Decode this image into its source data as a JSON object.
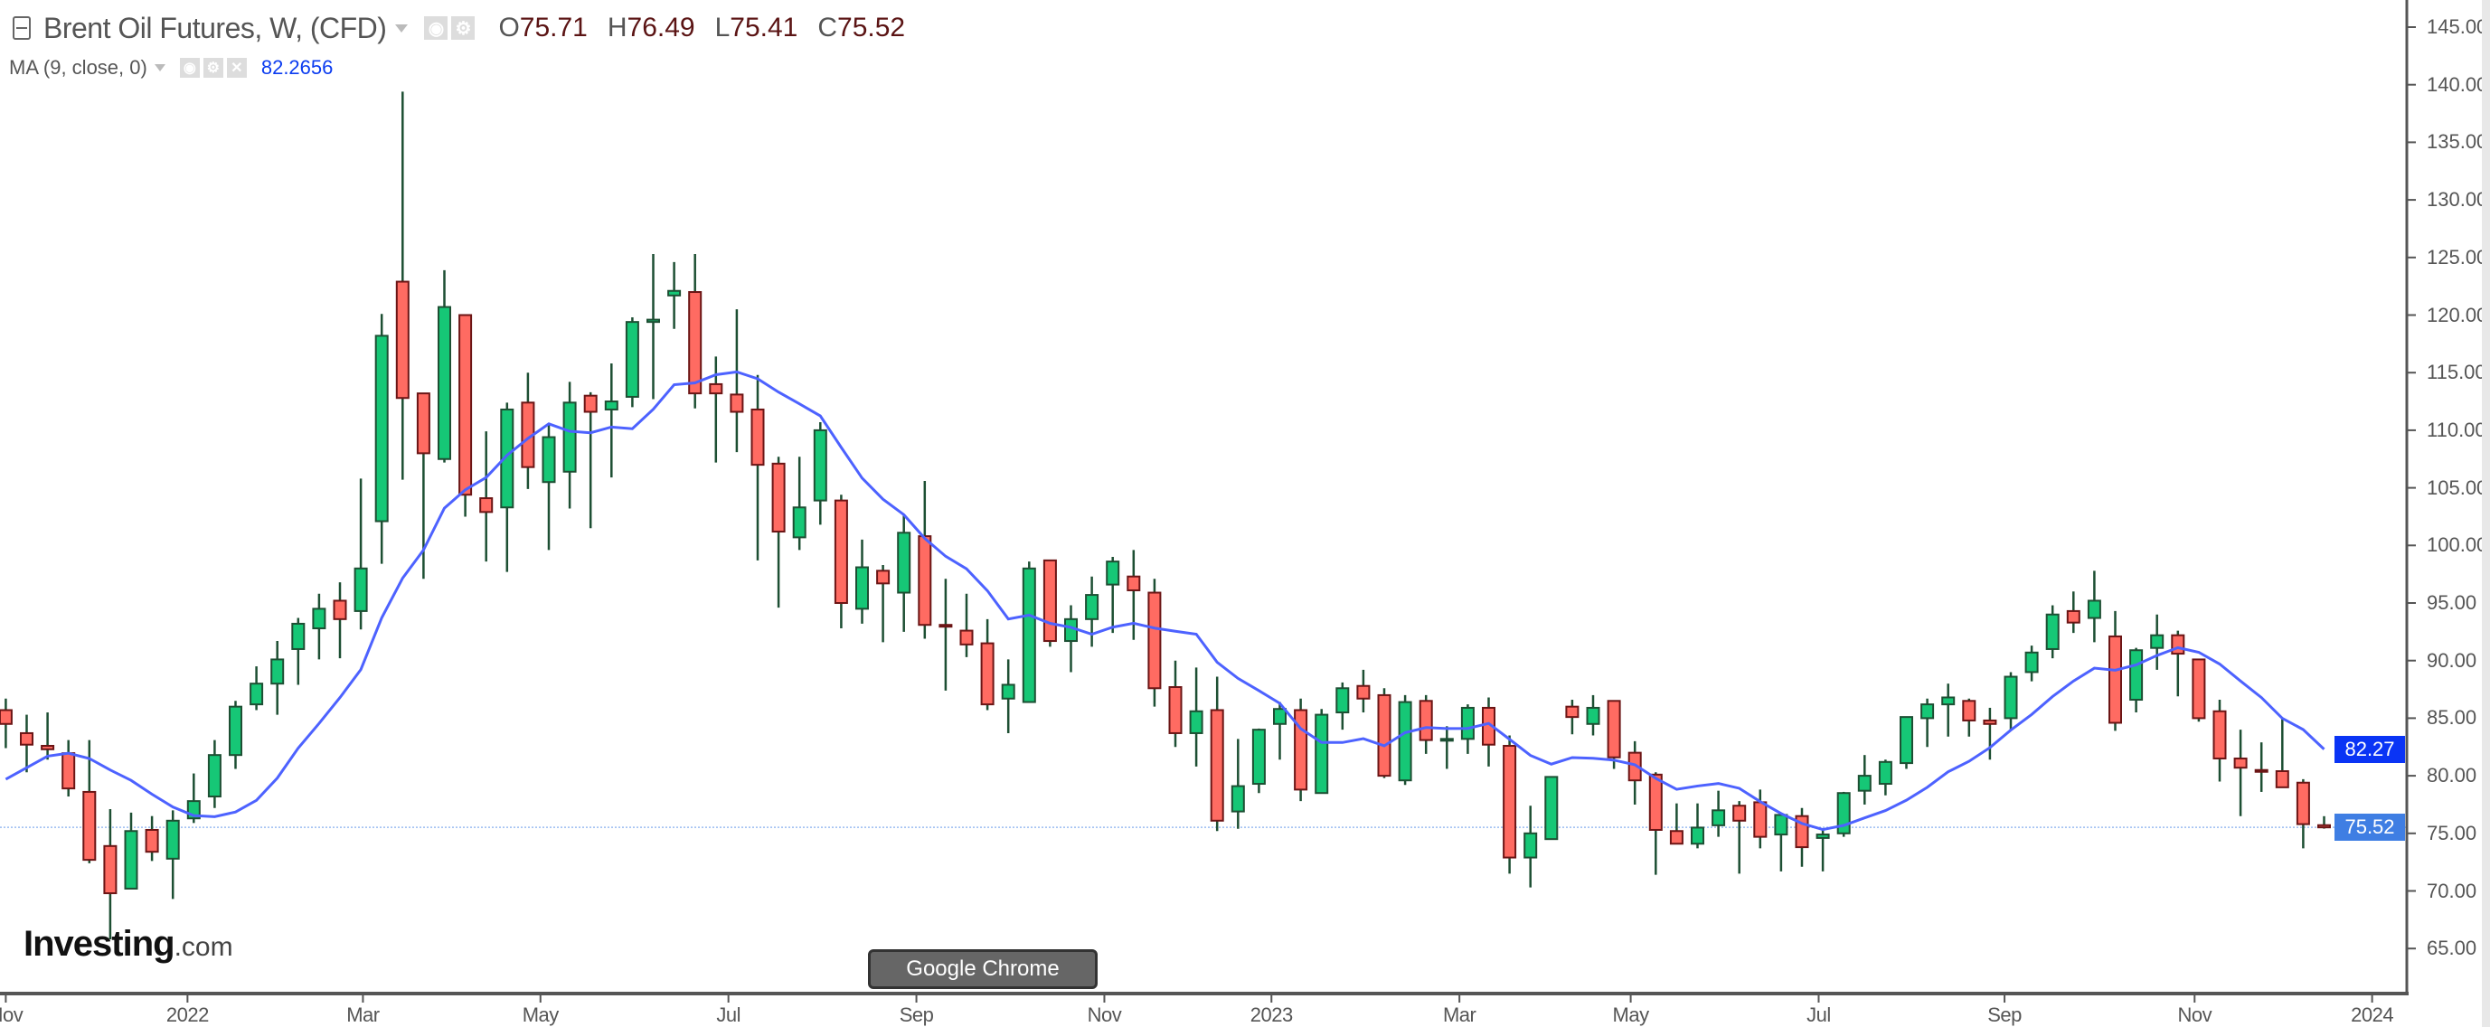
{
  "header": {
    "title": "Brent Oil Futures, W, (CFD)",
    "ohlc": {
      "o_key": "O",
      "o": "75.71",
      "h_key": "H",
      "h": "76.49",
      "l_key": "L",
      "l": "75.41",
      "c_key": "C",
      "c": "75.52"
    },
    "indicator": {
      "label": "MA (9, close, 0)",
      "value": "82.2656"
    }
  },
  "icons": [
    "collapse-icon",
    "caret-down-icon",
    "eye-icon",
    "gear-icon",
    "close-icon"
  ],
  "colors": {
    "up": "#16c776",
    "down": "#ff6b62",
    "down_border": "#6b1515",
    "wick": "#1d4f33",
    "ma": "#4d62ff",
    "ma_badge": "#0a34f5",
    "last_badge": "#3f7ee3",
    "axis": "#555555"
  },
  "logo": {
    "main": "Investing",
    "suffix": ".com"
  },
  "tooltip": "Google Chrome",
  "price_badges": {
    "ma": "82.27",
    "last": "75.52"
  },
  "chart_data": {
    "type": "candlestick",
    "title": "Brent Oil Futures, W, (CFD)",
    "interval": "weekly",
    "ylim": [
      61,
      147
    ],
    "y_ticks": [
      "145.00",
      "140.00",
      "135.00",
      "130.00",
      "125.00",
      "120.00",
      "115.00",
      "110.00",
      "105.00",
      "100.00",
      "95.00",
      "90.00",
      "85.00",
      "80.00",
      "75.00",
      "70.00",
      "65.00"
    ],
    "x_ticks": [
      {
        "label": "Nov",
        "week": 1.0
      },
      {
        "label": "2022",
        "week": 9.7
      },
      {
        "label": "Mar",
        "week": 18.1
      },
      {
        "label": "May",
        "week": 26.6
      },
      {
        "label": "Jul",
        "week": 35.6
      },
      {
        "label": "Sep",
        "week": 44.6
      },
      {
        "label": "Nov",
        "week": 53.6
      },
      {
        "label": "2023",
        "week": 61.6
      },
      {
        "label": "Mar",
        "week": 70.6
      },
      {
        "label": "May",
        "week": 78.8
      },
      {
        "label": "Jul",
        "week": 87.8
      },
      {
        "label": "Sep",
        "week": 96.7
      },
      {
        "label": "Nov",
        "week": 105.8
      },
      {
        "label": "2024",
        "week": 114.3
      }
    ],
    "x_ticks_hidden": [
      "Sep"
    ],
    "ma_period": 9,
    "ma_leading": [
      79.7,
      80.7,
      81.7,
      81.96,
      81.5,
      80.5,
      79.6,
      78.4
    ],
    "last_price": 75.52,
    "ohlc": [
      [
        85.7,
        86.7,
        82.4,
        84.5
      ],
      [
        83.7,
        85.3,
        80.3,
        82.7
      ],
      [
        82.6,
        85.5,
        81.4,
        82.3
      ],
      [
        81.96,
        83.1,
        78.2,
        78.9
      ],
      [
        78.6,
        83.1,
        72.4,
        72.7
      ],
      [
        73.9,
        77.1,
        65.8,
        69.8
      ],
      [
        70.2,
        76.8,
        70.2,
        75.2
      ],
      [
        75.3,
        76.5,
        72.6,
        73.4
      ],
      [
        72.8,
        77.0,
        69.3,
        76.1
      ],
      [
        76.3,
        80.2,
        75.9,
        77.8
      ],
      [
        78.2,
        83.1,
        77.2,
        81.8
      ],
      [
        81.8,
        86.5,
        80.6,
        86.0
      ],
      [
        86.2,
        89.5,
        85.7,
        88.0
      ],
      [
        88.0,
        91.7,
        85.3,
        90.1
      ],
      [
        91.0,
        93.7,
        87.9,
        93.2
      ],
      [
        92.8,
        95.8,
        90.1,
        94.5
      ],
      [
        95.2,
        96.8,
        90.2,
        93.6
      ],
      [
        94.3,
        105.8,
        92.7,
        98.0
      ],
      [
        102.1,
        120.1,
        98.4,
        118.2
      ],
      [
        122.9,
        139.4,
        105.7,
        112.8
      ],
      [
        113.2,
        113.2,
        97.1,
        108.0
      ],
      [
        107.5,
        123.9,
        107.2,
        120.7
      ],
      [
        120.0,
        120.0,
        102.5,
        104.4
      ],
      [
        104.1,
        109.9,
        98.6,
        102.9
      ],
      [
        103.3,
        112.4,
        97.7,
        111.8
      ],
      [
        112.4,
        115.0,
        104.9,
        106.8
      ],
      [
        105.5,
        110.5,
        99.6,
        109.4
      ],
      [
        106.4,
        114.2,
        103.2,
        112.4
      ],
      [
        113.0,
        113.3,
        101.5,
        111.6
      ],
      [
        111.8,
        115.8,
        105.9,
        112.5
      ],
      [
        112.9,
        119.8,
        112.0,
        119.4
      ],
      [
        119.4,
        125.3,
        112.7,
        119.6
      ],
      [
        121.7,
        124.6,
        118.8,
        122.1
      ],
      [
        122.0,
        125.3,
        111.9,
        113.2
      ],
      [
        114.0,
        116.4,
        107.2,
        113.2
      ],
      [
        113.1,
        120.5,
        108.1,
        111.6
      ],
      [
        111.8,
        114.8,
        98.7,
        107.0
      ],
      [
        107.1,
        107.7,
        94.6,
        101.2
      ],
      [
        100.7,
        107.7,
        99.6,
        103.3
      ],
      [
        103.9,
        110.7,
        101.8,
        110.0
      ],
      [
        103.9,
        104.4,
        92.8,
        95.0
      ],
      [
        94.5,
        100.5,
        93.2,
        98.1
      ],
      [
        97.8,
        98.3,
        91.6,
        96.7
      ],
      [
        95.9,
        102.6,
        92.5,
        101.1
      ],
      [
        100.8,
        105.6,
        91.9,
        93.1
      ],
      [
        93.1,
        97.1,
        87.4,
        93.0
      ],
      [
        92.6,
        95.8,
        90.3,
        91.4
      ],
      [
        91.5,
        93.6,
        85.7,
        86.2
      ],
      [
        86.7,
        90.1,
        83.7,
        87.9
      ],
      [
        86.4,
        98.6,
        86.4,
        98.0
      ],
      [
        98.7,
        98.7,
        91.2,
        91.7
      ],
      [
        91.7,
        94.8,
        89.0,
        93.6
      ],
      [
        93.6,
        97.3,
        91.2,
        95.7
      ],
      [
        96.6,
        99.0,
        92.4,
        98.6
      ],
      [
        97.3,
        99.6,
        91.8,
        96.1
      ],
      [
        95.9,
        97.1,
        86.0,
        87.6
      ],
      [
        87.7,
        90.0,
        82.5,
        83.7
      ],
      [
        83.7,
        89.4,
        80.8,
        85.6
      ],
      [
        85.7,
        88.6,
        75.2,
        76.1
      ],
      [
        76.9,
        83.2,
        75.4,
        79.1
      ],
      [
        79.3,
        84.1,
        78.5,
        84.0
      ],
      [
        84.5,
        86.4,
        81.4,
        85.8
      ],
      [
        85.7,
        86.7,
        77.8,
        78.8
      ],
      [
        78.5,
        85.8,
        78.5,
        85.3
      ],
      [
        85.5,
        88.1,
        84.0,
        87.6
      ],
      [
        87.8,
        89.2,
        85.5,
        86.7
      ],
      [
        87.0,
        87.6,
        79.8,
        80.0
      ],
      [
        79.6,
        87.0,
        79.2,
        86.4
      ],
      [
        86.5,
        87.0,
        81.9,
        83.1
      ],
      [
        83.2,
        84.3,
        80.6,
        83.2
      ],
      [
        83.2,
        86.2,
        81.9,
        85.9
      ],
      [
        85.9,
        86.8,
        80.8,
        82.7
      ],
      [
        82.6,
        83.5,
        71.5,
        72.9
      ],
      [
        72.9,
        77.4,
        70.3,
        75.0
      ],
      [
        74.5,
        79.9,
        74.5,
        79.9
      ],
      [
        86.0,
        86.6,
        83.6,
        85.1
      ],
      [
        84.5,
        87.0,
        83.5,
        85.9
      ],
      [
        86.5,
        86.5,
        80.6,
        81.6
      ],
      [
        82.0,
        83.0,
        77.5,
        79.6
      ],
      [
        80.1,
        80.3,
        71.4,
        75.3
      ],
      [
        75.2,
        77.6,
        74.1,
        74.1
      ],
      [
        74.1,
        77.6,
        73.7,
        75.5
      ],
      [
        75.7,
        78.7,
        74.7,
        77.0
      ],
      [
        77.4,
        77.8,
        71.5,
        76.1
      ],
      [
        77.7,
        78.8,
        73.7,
        74.7
      ],
      [
        74.9,
        76.8,
        71.7,
        76.6
      ],
      [
        76.5,
        77.2,
        72.1,
        73.8
      ],
      [
        74.6,
        75.4,
        71.7,
        74.9
      ],
      [
        75.0,
        78.6,
        74.7,
        78.5
      ],
      [
        78.7,
        81.8,
        77.5,
        80.0
      ],
      [
        79.3,
        81.4,
        78.3,
        81.2
      ],
      [
        81.1,
        85.1,
        80.6,
        85.1
      ],
      [
        85.0,
        86.7,
        82.5,
        86.2
      ],
      [
        86.2,
        88.0,
        83.4,
        86.8
      ],
      [
        86.5,
        86.7,
        83.4,
        84.8
      ],
      [
        84.8,
        85.9,
        81.4,
        84.5
      ],
      [
        85.0,
        89.0,
        83.9,
        88.6
      ],
      [
        89.0,
        91.3,
        88.2,
        90.7
      ],
      [
        91.0,
        94.8,
        90.2,
        94.0
      ],
      [
        94.3,
        96.0,
        92.4,
        93.3
      ],
      [
        93.7,
        97.8,
        91.6,
        95.2
      ],
      [
        92.1,
        94.3,
        83.9,
        84.6
      ],
      [
        86.6,
        91.1,
        85.5,
        90.9
      ],
      [
        91.1,
        94.0,
        89.2,
        92.2
      ],
      [
        92.2,
        92.6,
        86.9,
        90.6
      ],
      [
        90.1,
        90.1,
        84.7,
        85.0
      ],
      [
        85.6,
        86.6,
        79.5,
        81.5
      ],
      [
        81.5,
        84.0,
        76.5,
        80.7
      ],
      [
        80.5,
        82.9,
        78.6,
        80.4
      ],
      [
        80.4,
        84.9,
        79.0,
        79.0
      ],
      [
        79.4,
        79.7,
        73.7,
        75.8
      ],
      [
        75.71,
        76.49,
        75.41,
        75.52
      ]
    ]
  }
}
